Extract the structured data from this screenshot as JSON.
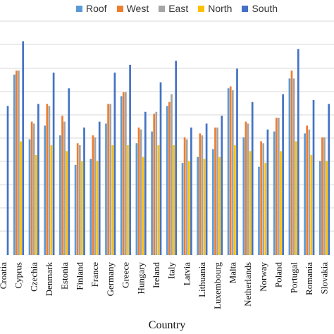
{
  "chart_data": {
    "type": "bar",
    "xlabel": "Country",
    "grid": true,
    "legend_position": "top",
    "categories": [
      "Croatia",
      "Cyprus",
      "Czechia",
      "Denmark",
      "Estonia",
      "Finland",
      "France",
      "Germany",
      "Greece",
      "Hungary",
      "Ireland",
      "Italy",
      "Latvia",
      "Lithuania",
      "Luxembourg",
      "Malta",
      "Netherlands",
      "Norway",
      "Poland",
      "Portugal",
      "Romania",
      "Slovakia"
    ],
    "category_labels": [
      "Croatia",
      "Cyprus",
      "Czechia",
      "Denmark",
      "Estonia",
      "Finland",
      "France",
      "Germany",
      "Greece",
      "Hungary",
      "Ireland",
      "Italy",
      "Latvia",
      "Lithuania",
      "Luxembourg",
      "Malta",
      "Netherlands",
      "Norway",
      "Poland",
      "Portugal",
      "Romania",
      "Slovakia"
    ],
    "ylim": [
      0,
      1.3
    ],
    "series": [
      {
        "name": "Roof",
        "color": "#5b9bd5",
        "values": [
          null,
          0.92,
          0.59,
          0.66,
          0.61,
          0.46,
          0.49,
          0.67,
          0.81,
          0.57,
          0.63,
          0.76,
          0.47,
          0.5,
          0.54,
          0.85,
          0.6,
          0.45,
          0.63,
          0.9,
          0.62,
          0.48
        ]
      },
      {
        "name": "West",
        "color": "#ed7d31",
        "values": [
          null,
          0.94,
          0.68,
          0.77,
          0.71,
          0.57,
          0.61,
          0.77,
          0.83,
          0.65,
          0.72,
          0.78,
          0.6,
          0.62,
          0.65,
          0.86,
          0.68,
          0.58,
          0.7,
          0.94,
          0.66,
          0.6
        ]
      },
      {
        "name": "East",
        "color": "#a5a5a5",
        "values": [
          null,
          0.94,
          0.67,
          0.76,
          0.68,
          0.56,
          0.6,
          0.77,
          0.83,
          0.64,
          0.73,
          0.82,
          0.59,
          0.61,
          0.65,
          0.84,
          0.67,
          0.57,
          0.7,
          0.9,
          0.64,
          0.6
        ]
      },
      {
        "name": "North",
        "color": "#ffc000",
        "values": [
          null,
          0.58,
          0.51,
          0.56,
          0.53,
          0.48,
          0.48,
          0.56,
          0.56,
          0.5,
          0.56,
          0.56,
          0.48,
          0.49,
          0.5,
          0.56,
          0.53,
          0.47,
          0.53,
          0.58,
          0.51,
          0.48
        ]
      },
      {
        "name": "South",
        "color": "#4472c4",
        "values": [
          0.76,
          1.09,
          0.77,
          0.93,
          0.85,
          0.65,
          0.68,
          0.93,
          0.97,
          0.73,
          0.88,
          0.99,
          0.65,
          0.67,
          0.71,
          0.95,
          0.78,
          0.64,
          0.82,
          1.05,
          0.79,
          0.77
        ]
      }
    ]
  }
}
